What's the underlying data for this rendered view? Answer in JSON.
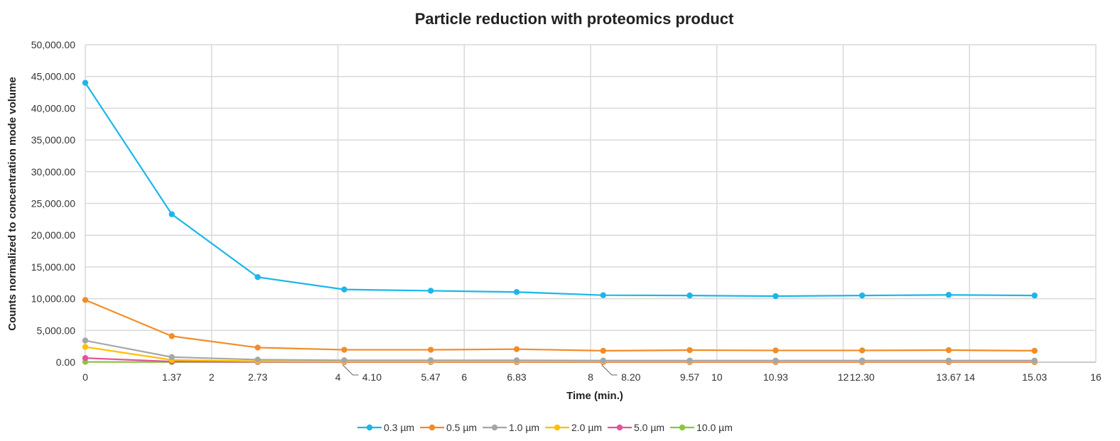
{
  "chart_data": {
    "type": "scatter",
    "title": "Particle reduction with proteomics product",
    "xlabel": "Time (min.)",
    "ylabel": "Counts normalized to concentration mode volume",
    "xlim": [
      0,
      16
    ],
    "ylim": [
      0,
      50000
    ],
    "xticks": [
      0,
      2,
      4,
      6,
      8,
      10,
      12,
      14,
      16
    ],
    "yticks": [
      "0.00",
      "5,000.00",
      "10,000.00",
      "15,000.00",
      "20,000.00",
      "25,000.00",
      "30,000.00",
      "35,000.00",
      "40,000.00",
      "45,000.00",
      "50,000.00"
    ],
    "yticks_values": [
      0,
      5000,
      10000,
      15000,
      20000,
      25000,
      30000,
      35000,
      40000,
      45000,
      50000
    ],
    "x": [
      0,
      1.37,
      2.73,
      4.1,
      5.47,
      6.83,
      8.2,
      9.57,
      10.93,
      12.3,
      13.67,
      15.03
    ],
    "point_labels": [
      "1.37",
      "2.73",
      "4.10",
      "5.47",
      "6.83",
      "8.20",
      "9.57",
      "10.93",
      "12.30",
      "13.67",
      "15.03"
    ],
    "grid": true,
    "legend_position": "bottom",
    "series": [
      {
        "name": "0.3 µm",
        "color": "#1ab7ea",
        "values": [
          44000,
          23300,
          13400,
          11450,
          11250,
          11050,
          10550,
          10500,
          10400,
          10500,
          10600,
          10500
        ]
      },
      {
        "name": "0.5 µm",
        "color": "#f28c28",
        "values": [
          9800,
          4100,
          2300,
          1950,
          1950,
          2050,
          1800,
          1900,
          1850,
          1850,
          1900,
          1800
        ]
      },
      {
        "name": "1.0 µm",
        "color": "#a6a6a6",
        "values": [
          3400,
          800,
          400,
          300,
          300,
          300,
          250,
          250,
          250,
          250,
          250,
          250
        ]
      },
      {
        "name": "2.0 µm",
        "color": "#ffc000",
        "values": [
          2400,
          350,
          150,
          100,
          100,
          100,
          100,
          100,
          100,
          100,
          100,
          100
        ]
      },
      {
        "name": "5.0 µm",
        "color": "#e0559a",
        "values": [
          650,
          100,
          50,
          30,
          30,
          30,
          30,
          30,
          30,
          30,
          30,
          30
        ]
      },
      {
        "name": "10.0 µm",
        "color": "#8cc63f",
        "values": [
          50,
          30,
          20,
          20,
          20,
          20,
          20,
          20,
          20,
          20,
          20,
          20
        ]
      }
    ]
  }
}
